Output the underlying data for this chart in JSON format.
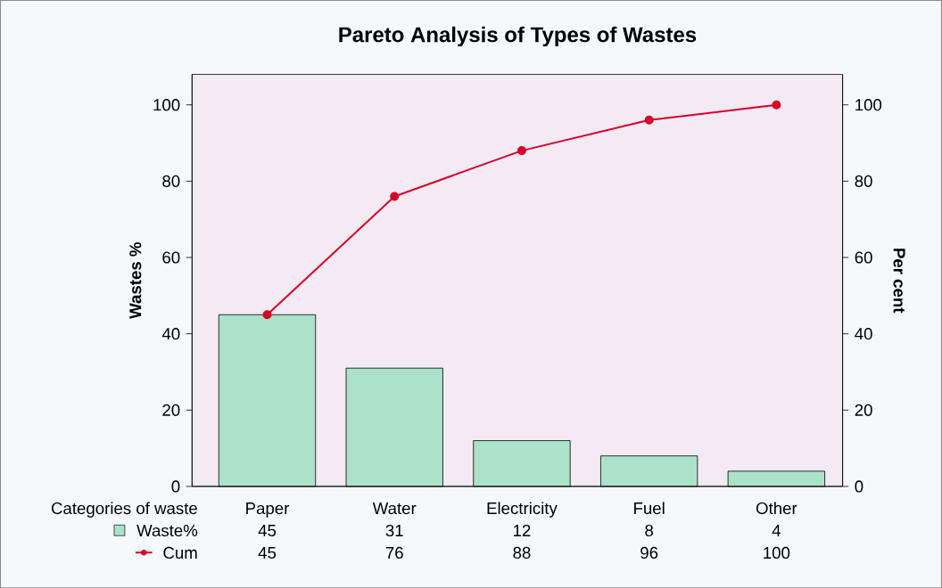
{
  "chart_data": {
    "type": "bar",
    "title": "Pareto Analysis of Types of Wastes",
    "xlabel": "Categories of waste",
    "ylabel": "Wastes %",
    "y2label": "Per cent",
    "categories": [
      "Paper",
      "Water",
      "Electricity",
      "Fuel",
      "Other"
    ],
    "series": [
      {
        "name": "Waste%",
        "color": "#abe2c9",
        "values": [
          45,
          31,
          12,
          8,
          4
        ]
      },
      {
        "name": "Cum",
        "type": "line",
        "axis": "y2",
        "color": "#d7002a",
        "values": [
          45,
          76,
          88,
          96,
          100
        ]
      }
    ],
    "marker": "circle",
    "data_labels": true,
    "legend": "bottom left",
    "ylim": [
      0,
      108
    ],
    "yticks": [
      0,
      20,
      40,
      60,
      80,
      100
    ],
    "y2lim": [
      0,
      108
    ],
    "y2ticks": [
      0,
      20,
      40,
      60,
      80,
      100
    ]
  }
}
